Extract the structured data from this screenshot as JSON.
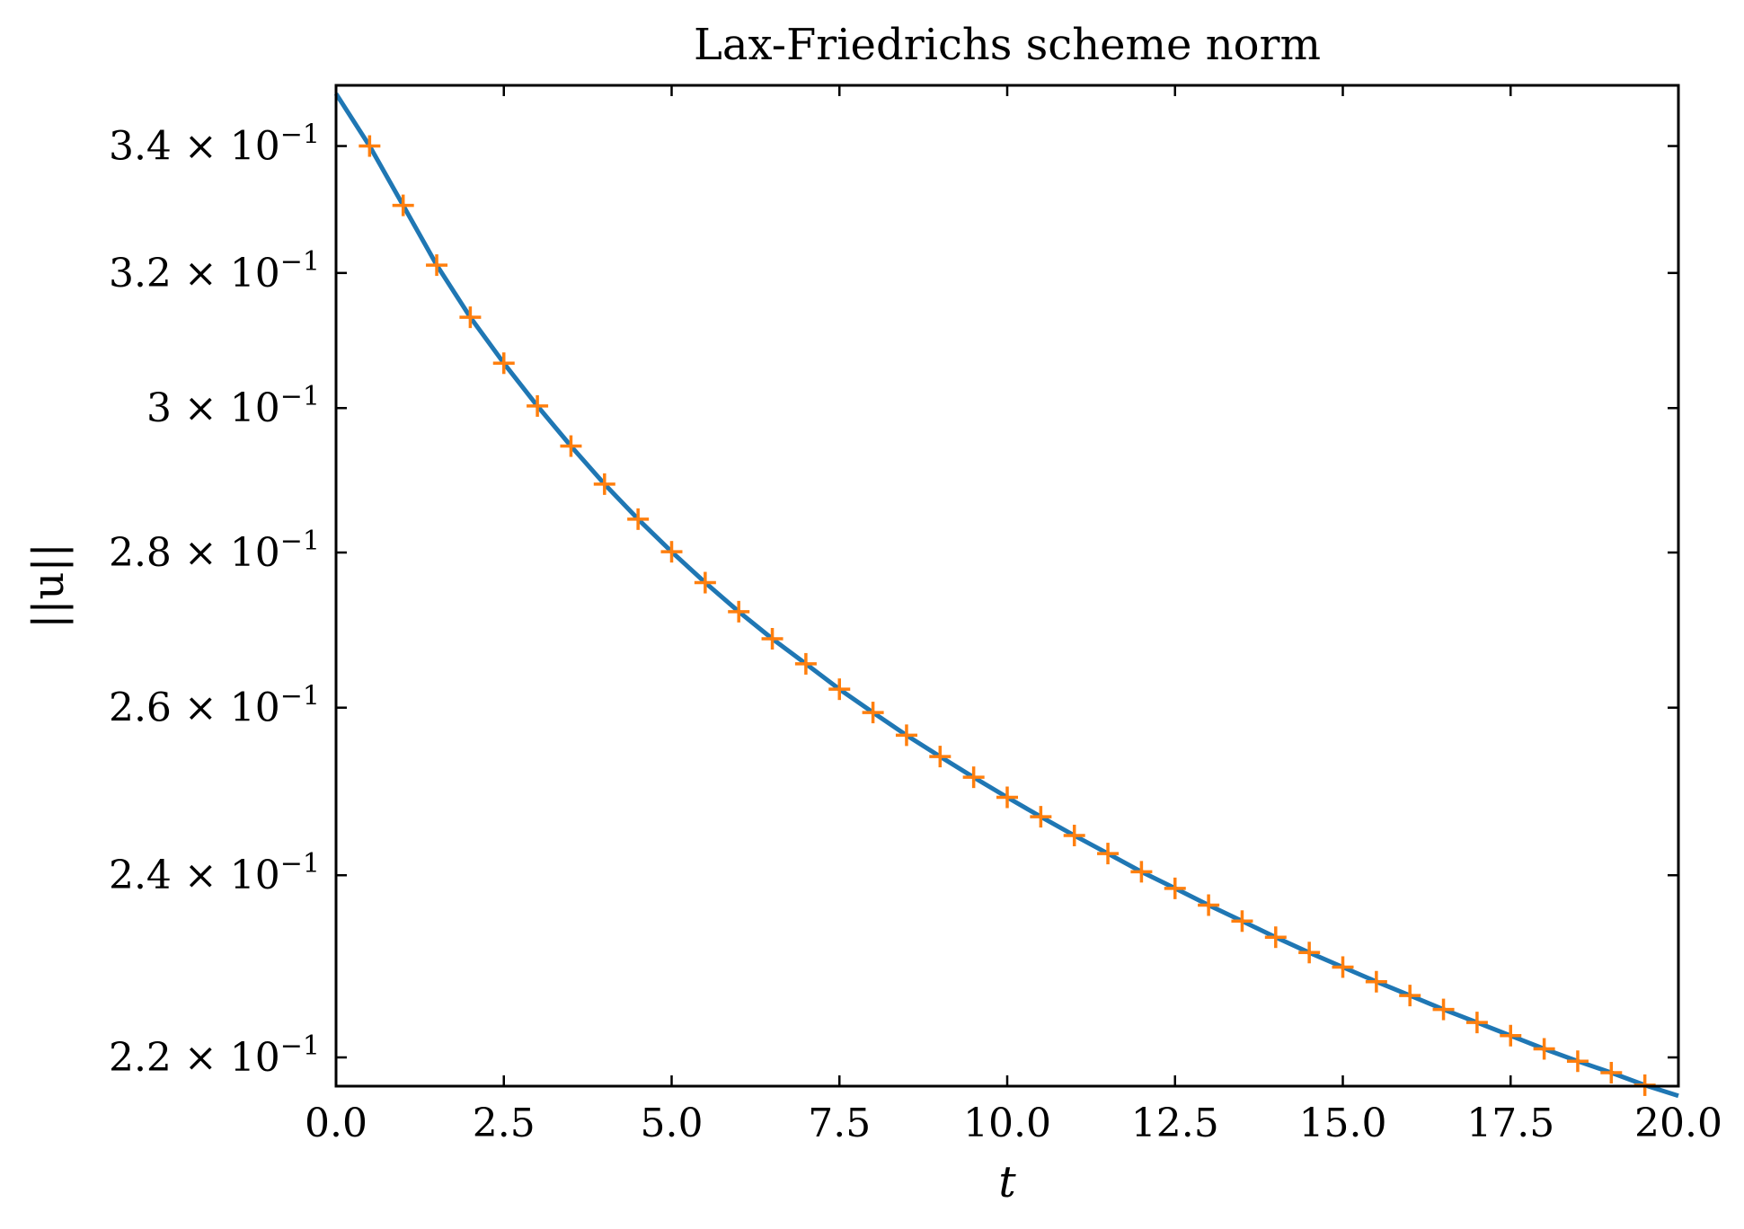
{
  "chart_data": {
    "type": "line",
    "title": "Lax-Friedrichs scheme norm",
    "xlabel": "t",
    "ylabel": "||u||",
    "xlim": [
      0,
      20
    ],
    "ylim": [
      0.217,
      0.35
    ],
    "yscale": "log",
    "grid": false,
    "legend": "none",
    "x_ticks": [
      0,
      2.5,
      5,
      7.5,
      10,
      12.5,
      15,
      17.5,
      20
    ],
    "x_tick_labels": [
      "0.0",
      "2.5",
      "5.0",
      "7.5",
      "10.0",
      "12.5",
      "15.0",
      "17.5",
      "20.0"
    ],
    "y_ticks": [
      0.22,
      0.24,
      0.26,
      0.28,
      0.3,
      0.32,
      0.34
    ],
    "y_tick_labels": [
      {
        "mantissa": "2.2",
        "exponent": "−1"
      },
      {
        "mantissa": "2.4",
        "exponent": "−1"
      },
      {
        "mantissa": "2.6",
        "exponent": "−1"
      },
      {
        "mantissa": "2.8",
        "exponent": "−1"
      },
      {
        "mantissa": "3",
        "exponent": "−1"
      },
      {
        "mantissa": "3.2",
        "exponent": "−1"
      },
      {
        "mantissa": "3.4",
        "exponent": "−1"
      }
    ],
    "line_series": {
      "color": "#1f77b4",
      "x": [
        0,
        0.5,
        1,
        1.5,
        2,
        2.5,
        3,
        3.5,
        4,
        4.5,
        5,
        5.5,
        6,
        6.5,
        7,
        7.5,
        8,
        8.5,
        9,
        9.5,
        10,
        10.5,
        11,
        11.5,
        12,
        12.5,
        13,
        13.5,
        14,
        14.5,
        15,
        15.5,
        16,
        16.5,
        17,
        17.5,
        18,
        18.5,
        19,
        19.5,
        20
      ],
      "values": [
        0.3486,
        0.34,
        0.3305,
        0.3212,
        0.3133,
        0.3065,
        0.3003,
        0.2946,
        0.2893,
        0.2845,
        0.2801,
        0.276,
        0.2722,
        0.2687,
        0.2655,
        0.2623,
        0.2594,
        0.2566,
        0.254,
        0.2515,
        0.2491,
        0.2468,
        0.2446,
        0.2425,
        0.2404,
        0.2385,
        0.2366,
        0.2348,
        0.233,
        0.2313,
        0.2297,
        0.2281,
        0.2266,
        0.2251,
        0.2237,
        0.2223,
        0.2209,
        0.2196,
        0.2184,
        0.2171,
        0.216
      ]
    },
    "marker_series": {
      "color": "#ff7f0e",
      "marker": "+",
      "x": [
        0.5,
        1,
        1.5,
        2,
        2.5,
        3,
        3.5,
        4,
        4.5,
        5,
        5.5,
        6,
        6.5,
        7,
        7.5,
        8,
        8.5,
        9,
        9.5,
        10,
        10.5,
        11,
        11.5,
        12,
        12.5,
        13,
        13.5,
        14,
        14.5,
        15,
        15.5,
        16,
        16.5,
        17,
        17.5,
        18,
        18.5,
        19,
        19.5
      ],
      "values": [
        0.34,
        0.3305,
        0.3212,
        0.3133,
        0.3065,
        0.3003,
        0.2946,
        0.2893,
        0.2845,
        0.2801,
        0.276,
        0.2722,
        0.2687,
        0.2655,
        0.2623,
        0.2594,
        0.2566,
        0.254,
        0.2515,
        0.2491,
        0.2468,
        0.2446,
        0.2425,
        0.2404,
        0.2385,
        0.2366,
        0.2348,
        0.233,
        0.2313,
        0.2297,
        0.2281,
        0.2266,
        0.2251,
        0.2237,
        0.2223,
        0.2209,
        0.2196,
        0.2184,
        0.2171
      ]
    }
  }
}
